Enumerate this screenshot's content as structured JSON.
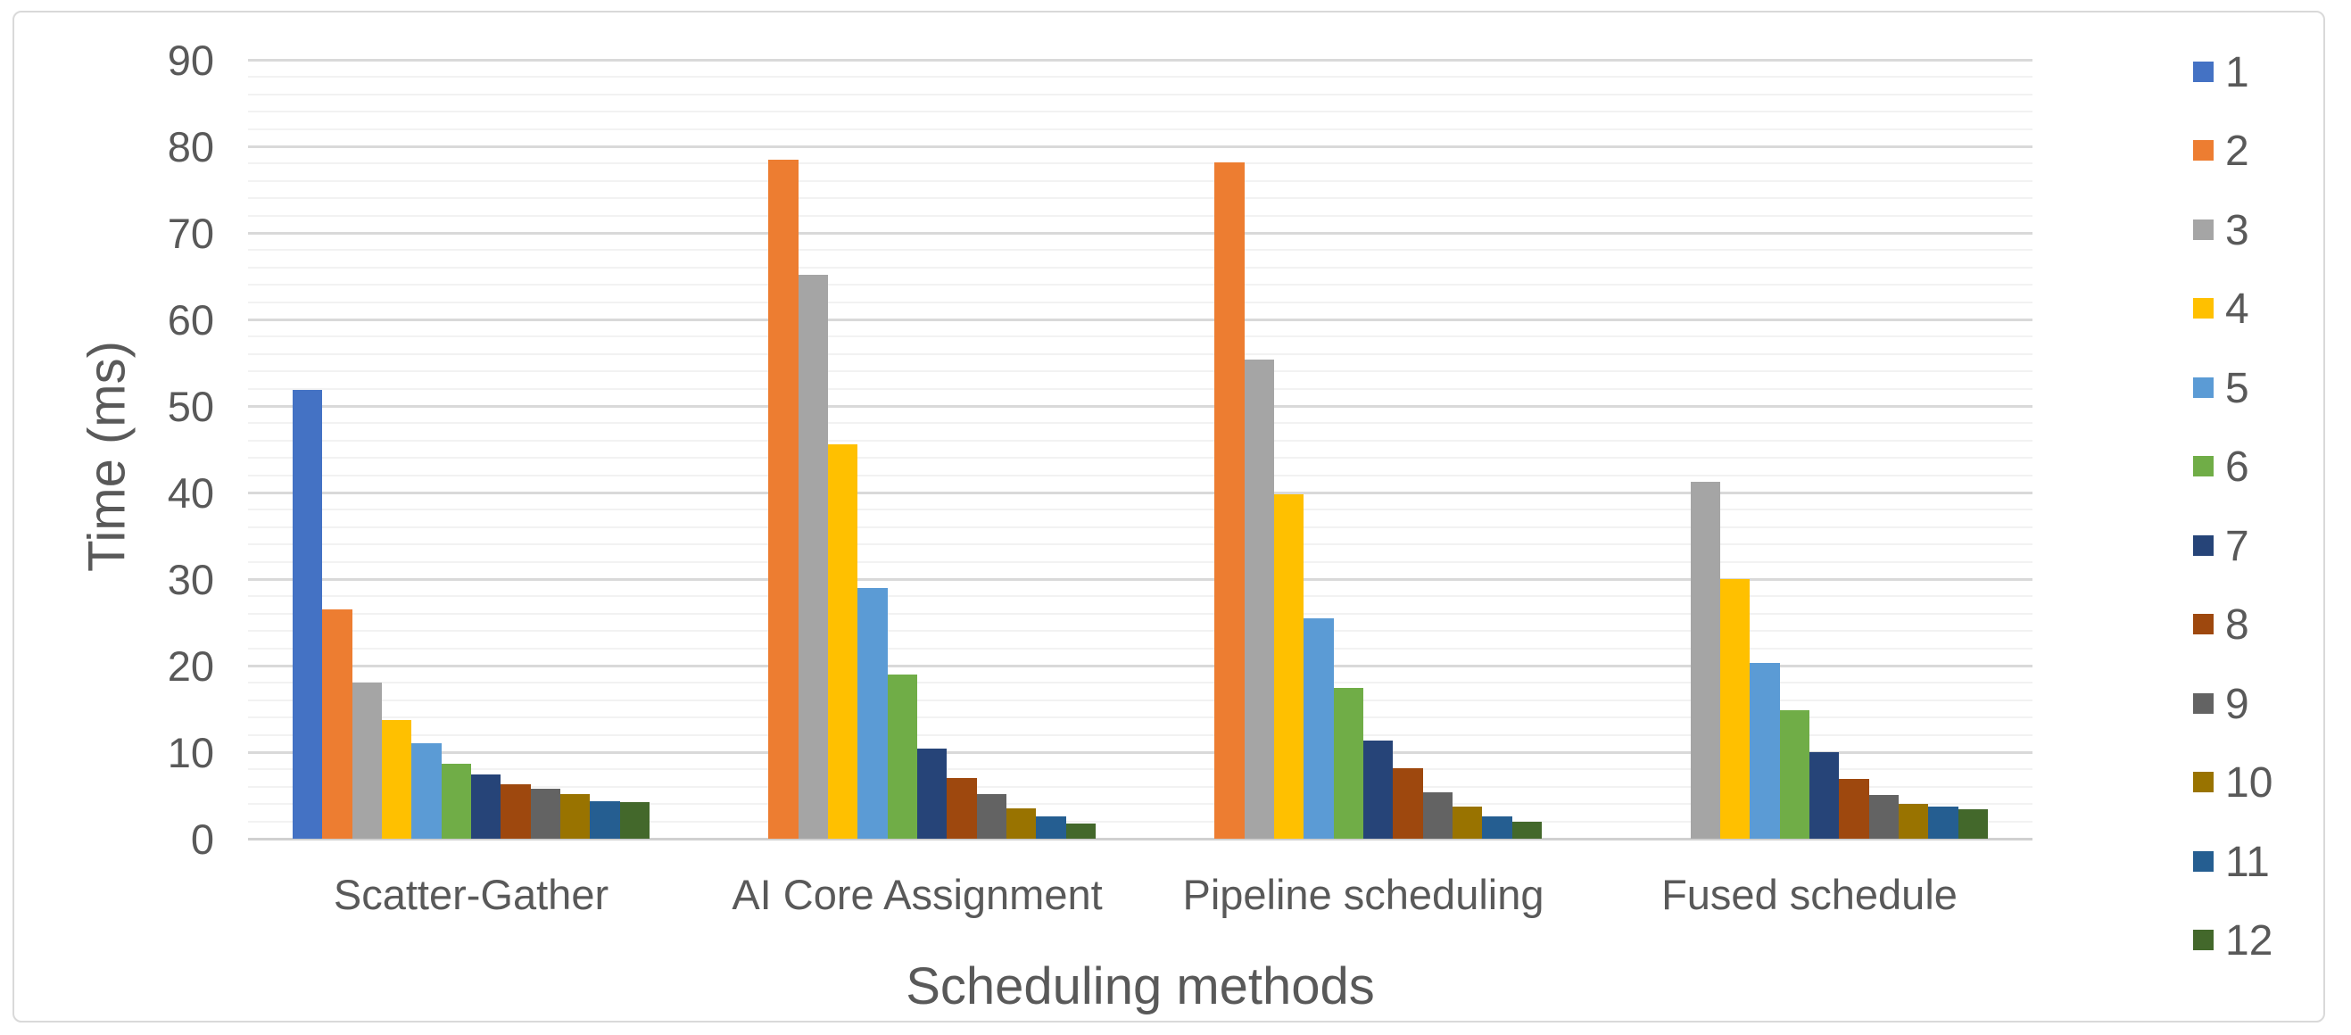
{
  "chart_data": {
    "type": "bar",
    "title": "",
    "xlabel": "Scheduling methods",
    "ylabel": "Time (ms)",
    "categories": [
      "Scatter-Gather",
      "AI Core Assignment",
      "Pipeline scheduling",
      "Fused schedule"
    ],
    "series": [
      {
        "name": "1",
        "color": "#4472c4",
        "values": [
          51.9,
          null,
          null,
          null
        ]
      },
      {
        "name": "2",
        "color": "#ed7d31",
        "values": [
          26.5,
          78.5,
          78.1,
          null
        ]
      },
      {
        "name": "3",
        "color": "#a5a5a5",
        "values": [
          18.0,
          65.2,
          55.4,
          41.2
        ]
      },
      {
        "name": "4",
        "color": "#ffc000",
        "values": [
          13.7,
          45.6,
          39.8,
          30.0
        ]
      },
      {
        "name": "5",
        "color": "#5b9bd5",
        "values": [
          11.0,
          29.0,
          25.5,
          20.3
        ]
      },
      {
        "name": "6",
        "color": "#70ad47",
        "values": [
          8.7,
          19.0,
          17.4,
          14.8
        ]
      },
      {
        "name": "7",
        "color": "#264478",
        "values": [
          7.4,
          10.4,
          11.3,
          10.0
        ]
      },
      {
        "name": "8",
        "color": "#9e480e",
        "values": [
          6.3,
          7.0,
          8.1,
          6.9
        ]
      },
      {
        "name": "9",
        "color": "#636363",
        "values": [
          5.8,
          5.2,
          5.4,
          5.1
        ]
      },
      {
        "name": "10",
        "color": "#997300",
        "values": [
          5.2,
          3.5,
          3.7,
          4.0
        ]
      },
      {
        "name": "11",
        "color": "#255e91",
        "values": [
          4.3,
          2.6,
          2.6,
          3.7
        ]
      },
      {
        "name": "12",
        "color": "#43682b",
        "values": [
          4.2,
          1.8,
          2.0,
          3.4
        ]
      }
    ],
    "ylim": [
      0,
      90
    ],
    "ytick_step": 10,
    "yticks": [
      "0",
      "10",
      "20",
      "30",
      "40",
      "50",
      "60",
      "70",
      "80",
      "90"
    ],
    "minor_gridline_step": 2,
    "grid": "horizontal major+minor",
    "legend_position": "right",
    "legend_labels": [
      "1",
      "2",
      "3",
      "4",
      "5",
      "6",
      "7",
      "8",
      "9",
      "10",
      "11",
      "12"
    ]
  },
  "style": {
    "text_color": "#595959",
    "major_grid_color": "#d9d9d9",
    "minor_grid_color": "#f2f2f2",
    "baseline_color": "#d0d0d0",
    "frame_color": "#d9d9d9",
    "background": "#ffffff"
  }
}
